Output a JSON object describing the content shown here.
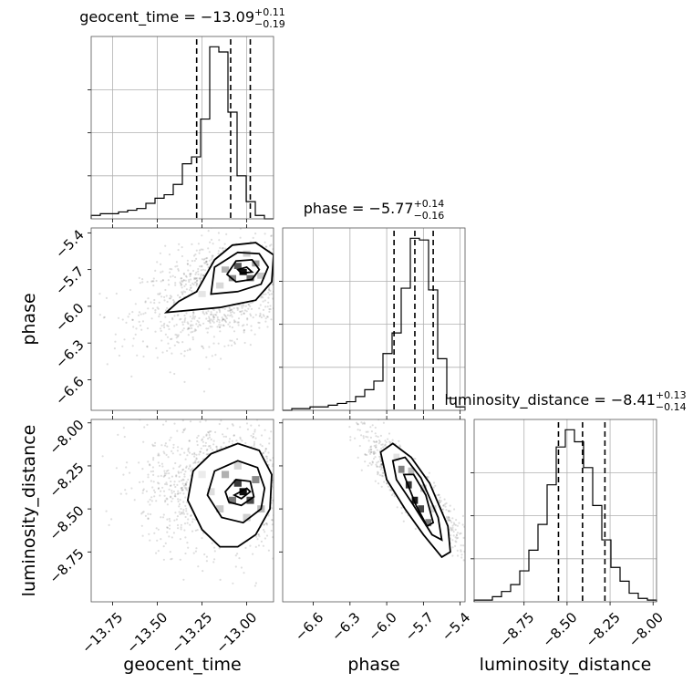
{
  "chart_data": {
    "type": "corner",
    "parameters": [
      {
        "name": "geocent_time",
        "axis_label": "geocent_time",
        "title_prefix": "geocent_time = ",
        "title_median": "−13.09",
        "title_plus": "+0.11",
        "title_minus": "−0.19",
        "range": [
          -13.87,
          -12.85
        ],
        "ticks": [
          -13.75,
          -13.5,
          -13.25,
          -13.0
        ],
        "tick_labels": [
          "−13.75",
          "−13.50",
          "−13.25",
          "−13.00"
        ],
        "quantiles": [
          -13.28,
          -13.09,
          -12.98
        ],
        "hist": {
          "start": -13.87,
          "width": 0.051,
          "counts": [
            2,
            3,
            3,
            4,
            5,
            6,
            9,
            12,
            14,
            20,
            32,
            36,
            58,
            100,
            97,
            62,
            25,
            10,
            2,
            0
          ]
        }
      },
      {
        "name": "phase",
        "axis_label": "phase",
        "title_prefix": "phase = ",
        "title_median": "−5.77",
        "title_plus": "+0.14",
        "title_minus": "−0.16",
        "range": [
          -6.85,
          -5.36
        ],
        "ticks": [
          -6.6,
          -6.3,
          -6.0,
          -5.7,
          -5.4
        ],
        "tick_labels": [
          "−6.6",
          "−6.3",
          "−6.0",
          "−5.7",
          "−5.4"
        ],
        "quantiles": [
          -5.94,
          -5.77,
          -5.62
        ],
        "hist": {
          "start": -6.85,
          "width": 0.0745,
          "counts": [
            0,
            1,
            1,
            2,
            2,
            3,
            4,
            5,
            8,
            12,
            17,
            33,
            45,
            71,
            100,
            99,
            70,
            30,
            7,
            2
          ]
        }
      },
      {
        "name": "luminosity_distance",
        "axis_label": "luminosity_distance",
        "title_prefix": "luminosity_distance = ",
        "title_median": "−8.41",
        "title_plus": "+0.13",
        "title_minus": "−0.14",
        "range": [
          -9.04,
          -7.98
        ],
        "ticks": [
          -8.75,
          -8.5,
          -8.25,
          -8.0
        ],
        "tick_labels": [
          "−8.75",
          "−8.50",
          "−8.25",
          "−8.00"
        ],
        "quantiles": [
          -8.55,
          -8.41,
          -8.28
        ],
        "hist": {
          "start": -9.04,
          "width": 0.053,
          "counts": [
            1,
            1,
            3,
            6,
            10,
            18,
            30,
            45,
            68,
            90,
            100,
            93,
            78,
            56,
            36,
            20,
            12,
            5,
            2,
            1
          ]
        }
      }
    ],
    "pair_panels": [
      {
        "x": "geocent_time",
        "y": "phase",
        "scatter": {
          "center": [
            -13.1,
            -5.85
          ],
          "spread": [
            0.24,
            0.22
          ],
          "points": 1500,
          "correlation": 0.45
        },
        "contours": [
          [
            [
              -13.45,
              -6.05
            ],
            [
              -13.38,
              -5.96
            ],
            [
              -13.28,
              -5.88
            ],
            [
              -13.18,
              -5.62
            ],
            [
              -13.08,
              -5.5
            ],
            [
              -12.95,
              -5.48
            ],
            [
              -12.85,
              -5.58
            ],
            [
              -12.86,
              -5.8
            ],
            [
              -12.95,
              -5.95
            ],
            [
              -13.15,
              -6.01
            ],
            [
              -13.45,
              -6.05
            ]
          ],
          [
            [
              -13.2,
              -5.9
            ],
            [
              -13.18,
              -5.68
            ],
            [
              -13.05,
              -5.56
            ],
            [
              -12.93,
              -5.57
            ],
            [
              -12.88,
              -5.68
            ],
            [
              -12.92,
              -5.82
            ],
            [
              -13.05,
              -5.88
            ],
            [
              -13.2,
              -5.9
            ]
          ],
          [
            [
              -13.11,
              -5.74
            ],
            [
              -13.06,
              -5.63
            ],
            [
              -12.97,
              -5.62
            ],
            [
              -12.93,
              -5.7
            ],
            [
              -12.97,
              -5.78
            ],
            [
              -13.06,
              -5.8
            ],
            [
              -13.11,
              -5.74
            ]
          ],
          [
            [
              -13.05,
              -5.7
            ],
            [
              -13.0,
              -5.68
            ],
            [
              -12.97,
              -5.72
            ],
            [
              -13.03,
              -5.73
            ],
            [
              -13.05,
              -5.7
            ]
          ]
        ],
        "density_cells": [
          {
            "x": -13.02,
            "y": -5.72,
            "shade": "#101010"
          },
          {
            "x": -13.05,
            "y": -5.67,
            "shade": "#555555"
          },
          {
            "x": -12.98,
            "y": -5.77,
            "shade": "#6b6b6b"
          },
          {
            "x": -13.08,
            "y": -5.77,
            "shade": "#8a8a8a"
          },
          {
            "x": -12.95,
            "y": -5.65,
            "shade": "#9c9c9c"
          },
          {
            "x": -13.12,
            "y": -5.7,
            "shade": "#b5b5b5"
          },
          {
            "x": -12.92,
            "y": -5.75,
            "shade": "#c6c6c6"
          },
          {
            "x": -13.15,
            "y": -5.83,
            "shade": "#d9d9d9"
          },
          {
            "x": -13.25,
            "y": -5.9,
            "shade": "#e6e6e6"
          },
          {
            "x": -13.0,
            "y": -5.57,
            "shade": "#d2d2d2"
          }
        ]
      },
      {
        "x": "geocent_time",
        "y": "luminosity_distance",
        "scatter": {
          "center": [
            -13.1,
            -8.38
          ],
          "spread": [
            0.24,
            0.18
          ],
          "points": 1500,
          "correlation": -0.05
        },
        "contours": [
          [
            [
              -13.33,
              -8.45
            ],
            [
              -13.3,
              -8.28
            ],
            [
              -13.2,
              -8.18
            ],
            [
              -13.05,
              -8.12
            ],
            [
              -12.93,
              -8.16
            ],
            [
              -12.86,
              -8.3
            ],
            [
              -12.87,
              -8.5
            ],
            [
              -12.95,
              -8.65
            ],
            [
              -13.05,
              -8.72
            ],
            [
              -13.15,
              -8.72
            ],
            [
              -13.25,
              -8.62
            ],
            [
              -13.33,
              -8.45
            ]
          ],
          [
            [
              -13.22,
              -8.42
            ],
            [
              -13.18,
              -8.28
            ],
            [
              -13.05,
              -8.22
            ],
            [
              -12.94,
              -8.26
            ],
            [
              -12.9,
              -8.38
            ],
            [
              -12.92,
              -8.5
            ],
            [
              -13.02,
              -8.58
            ],
            [
              -13.14,
              -8.55
            ],
            [
              -13.22,
              -8.42
            ]
          ],
          [
            [
              -13.12,
              -8.4
            ],
            [
              -13.06,
              -8.33
            ],
            [
              -12.98,
              -8.34
            ],
            [
              -12.96,
              -8.43
            ],
            [
              -13.03,
              -8.48
            ],
            [
              -13.1,
              -8.46
            ],
            [
              -13.12,
              -8.4
            ]
          ],
          [
            [
              -13.07,
              -8.42
            ],
            [
              -13.0,
              -8.38
            ],
            [
              -12.98,
              -8.4
            ],
            [
              -13.03,
              -8.44
            ],
            [
              -13.07,
              -8.42
            ]
          ]
        ],
        "density_cells": [
          {
            "x": -13.02,
            "y": -8.4,
            "shade": "#0d0d0d"
          },
          {
            "x": -13.05,
            "y": -8.35,
            "shade": "#3a3a3a"
          },
          {
            "x": -12.98,
            "y": -8.45,
            "shade": "#4a4a4a"
          },
          {
            "x": -13.08,
            "y": -8.45,
            "shade": "#777777"
          },
          {
            "x": -12.95,
            "y": -8.33,
            "shade": "#8a8a8a"
          },
          {
            "x": -13.12,
            "y": -8.3,
            "shade": "#b0b0b0"
          },
          {
            "x": -12.92,
            "y": -8.5,
            "shade": "#bcbcbc"
          },
          {
            "x": -13.15,
            "y": -8.5,
            "shade": "#c9c9c9"
          },
          {
            "x": -13.2,
            "y": -8.4,
            "shade": "#dedede"
          },
          {
            "x": -13.0,
            "y": -8.55,
            "shade": "#cfcfcf"
          },
          {
            "x": -13.25,
            "y": -8.3,
            "shade": "#ececec"
          },
          {
            "x": -13.05,
            "y": -8.25,
            "shade": "#d8d8d8"
          }
        ]
      },
      {
        "x": "phase",
        "y": "luminosity_distance",
        "scatter": {
          "center": [
            -5.8,
            -8.38
          ],
          "spread": [
            0.18,
            0.15
          ],
          "points": 1300,
          "correlation": -0.88
        },
        "contours": [
          [
            [
              -6.05,
              -8.17
            ],
            [
              -5.95,
              -8.12
            ],
            [
              -5.8,
              -8.2
            ],
            [
              -5.65,
              -8.35
            ],
            [
              -5.5,
              -8.6
            ],
            [
              -5.48,
              -8.75
            ],
            [
              -5.55,
              -8.78
            ],
            [
              -5.7,
              -8.65
            ],
            [
              -5.85,
              -8.5
            ],
            [
              -6.0,
              -8.33
            ],
            [
              -6.05,
              -8.17
            ]
          ],
          [
            [
              -5.95,
              -8.22
            ],
            [
              -5.85,
              -8.2
            ],
            [
              -5.72,
              -8.32
            ],
            [
              -5.58,
              -8.55
            ],
            [
              -5.55,
              -8.68
            ],
            [
              -5.63,
              -8.65
            ],
            [
              -5.78,
              -8.48
            ],
            [
              -5.92,
              -8.33
            ],
            [
              -5.95,
              -8.22
            ]
          ],
          [
            [
              -5.86,
              -8.3
            ],
            [
              -5.78,
              -8.3
            ],
            [
              -5.68,
              -8.42
            ],
            [
              -5.62,
              -8.58
            ],
            [
              -5.67,
              -8.6
            ],
            [
              -5.76,
              -8.48
            ],
            [
              -5.86,
              -8.3
            ]
          ]
        ],
        "density_cells": [
          {
            "x": -5.77,
            "y": -8.45,
            "shade": "#1a1a1a"
          },
          {
            "x": -5.82,
            "y": -8.36,
            "shade": "#333333"
          },
          {
            "x": -5.72,
            "y": -8.5,
            "shade": "#444444"
          },
          {
            "x": -5.88,
            "y": -8.27,
            "shade": "#808080"
          },
          {
            "x": -5.66,
            "y": -8.58,
            "shade": "#7a7a7a"
          },
          {
            "x": -5.8,
            "y": -8.28,
            "shade": "#bdbdbd"
          },
          {
            "x": -5.7,
            "y": -8.38,
            "shade": "#c4c4c4"
          },
          {
            "x": -5.62,
            "y": -8.5,
            "shade": "#d6d6d6"
          },
          {
            "x": -5.92,
            "y": -8.2,
            "shade": "#e3e3e3"
          }
        ]
      }
    ],
    "grid": true,
    "line_color": "#000000"
  }
}
